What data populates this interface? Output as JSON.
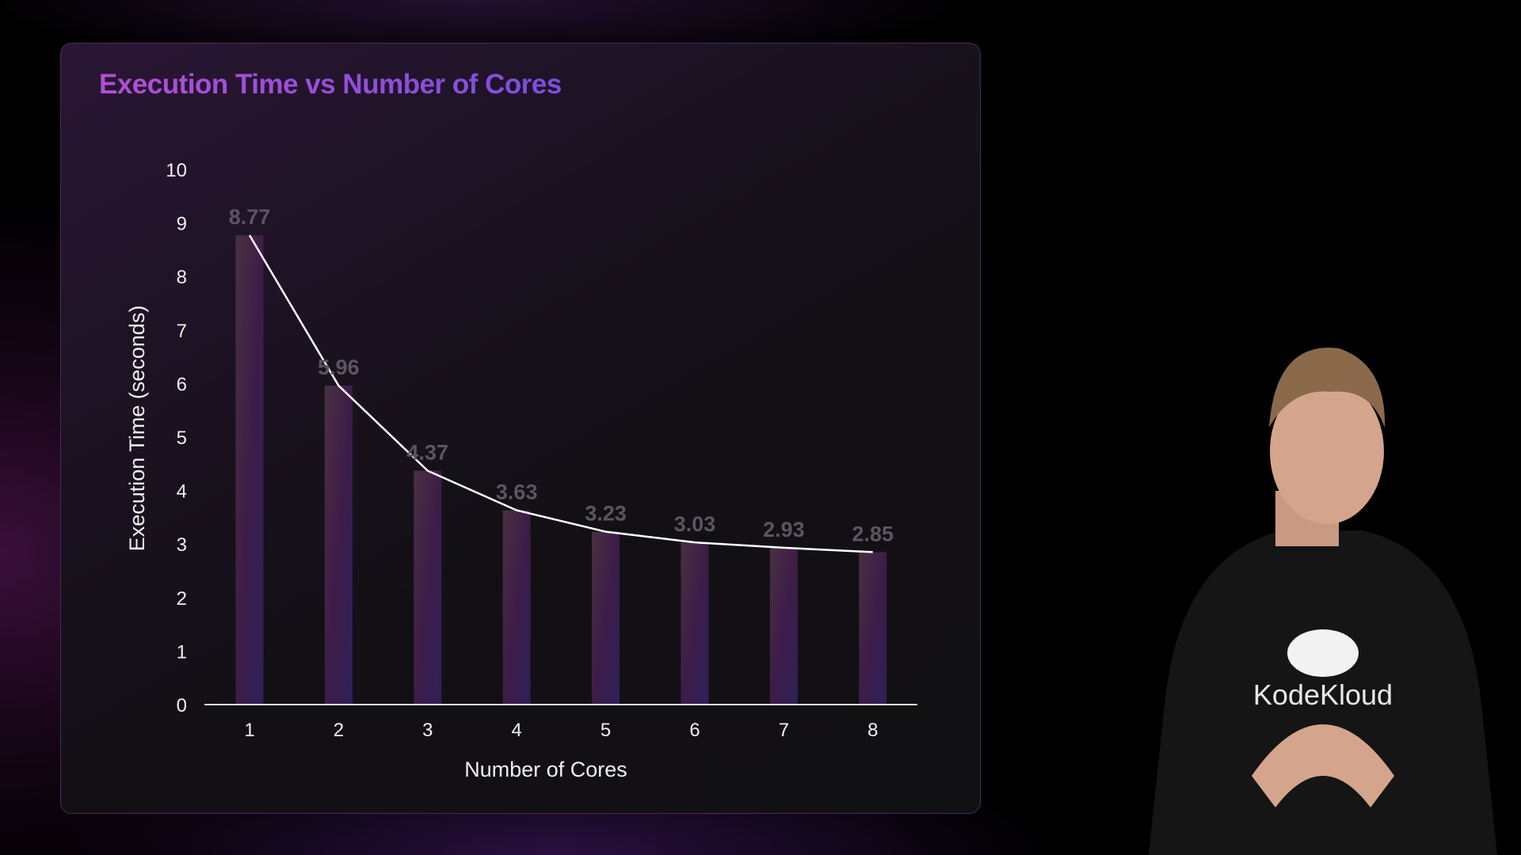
{
  "chart_data": {
    "type": "bar",
    "title": "Execution Time vs Number of Cores",
    "xlabel": "Number of Cores",
    "ylabel": "Execution Time (seconds)",
    "categories": [
      "1",
      "2",
      "3",
      "4",
      "5",
      "6",
      "7",
      "8"
    ],
    "values": [
      8.77,
      5.96,
      4.37,
      3.63,
      3.23,
      3.03,
      2.93,
      2.85
    ],
    "data_labels": [
      "8.77",
      "5.96",
      "4.37",
      "3.63",
      "3.23",
      "3.03",
      "2.93",
      "2.85"
    ],
    "overlay_line": true,
    "ylim": [
      0,
      10
    ],
    "yticks": [
      "0",
      "1",
      "2",
      "3",
      "4",
      "5",
      "6",
      "7",
      "8",
      "9",
      "10"
    ],
    "grid": false,
    "colors": {
      "bar_top": "#4a3040",
      "bar_bottom": "#3a2060",
      "line": "#ffffff",
      "data_label": "#5a5560",
      "title_start": "#b24fd6",
      "title_end": "#7a4ee0"
    }
  },
  "presenter": {
    "shirt_logo": "KodeKloud"
  }
}
